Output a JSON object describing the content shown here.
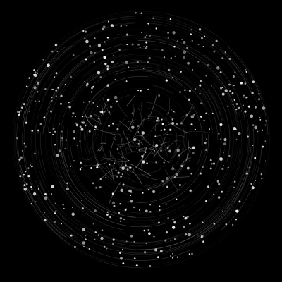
{
  "scene": {
    "background_color": "#000000",
    "particle_color": "#ffffff",
    "trail_color": "#bfbfbf"
  }
}
